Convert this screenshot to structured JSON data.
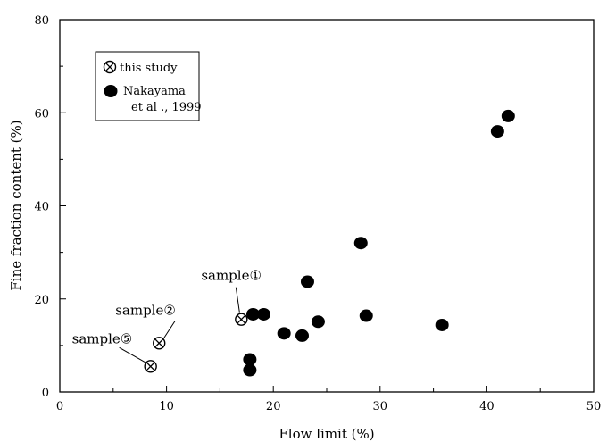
{
  "chart_data": {
    "type": "scatter",
    "xlabel": "Flow limit (%)",
    "ylabel": "Fine fraction content (%)",
    "xlim": [
      0,
      50
    ],
    "ylim": [
      0,
      80
    ],
    "xticks": [
      0,
      10,
      20,
      30,
      40,
      50
    ],
    "yticks": [
      0,
      20,
      40,
      60,
      80
    ],
    "grid": false,
    "legend_position": "top-left",
    "series": [
      {
        "name": "this study",
        "marker": "circle-x",
        "points": [
          {
            "x": 17.0,
            "y": 15.6
          },
          {
            "x": 9.3,
            "y": 10.5
          },
          {
            "x": 8.5,
            "y": 5.5
          }
        ]
      },
      {
        "name": "Nakayama et al ., 1999",
        "marker": "filled-circle",
        "points": [
          {
            "x": 42.0,
            "y": 59.3
          },
          {
            "x": 41.0,
            "y": 56.0
          },
          {
            "x": 28.2,
            "y": 32.0
          },
          {
            "x": 23.2,
            "y": 23.7
          },
          {
            "x": 18.1,
            "y": 16.7
          },
          {
            "x": 19.1,
            "y": 16.7
          },
          {
            "x": 28.7,
            "y": 16.4
          },
          {
            "x": 24.2,
            "y": 15.1
          },
          {
            "x": 35.8,
            "y": 14.4
          },
          {
            "x": 21.0,
            "y": 12.6
          },
          {
            "x": 22.7,
            "y": 12.1
          },
          {
            "x": 17.8,
            "y": 7.0
          },
          {
            "x": 17.8,
            "y": 4.7
          }
        ]
      }
    ],
    "legend": {
      "entries": [
        {
          "label_lines": [
            "this study"
          ]
        },
        {
          "label_lines": [
            "Nakayama",
            "et al ., 1999"
          ]
        }
      ]
    },
    "annotations": [
      {
        "text": "sample①",
        "target": {
          "x": 17.0,
          "y": 15.6
        }
      },
      {
        "text": "sample②",
        "target": {
          "x": 9.3,
          "y": 10.5
        }
      },
      {
        "text": "sample⑤",
        "target": {
          "x": 8.5,
          "y": 5.5
        }
      }
    ]
  }
}
